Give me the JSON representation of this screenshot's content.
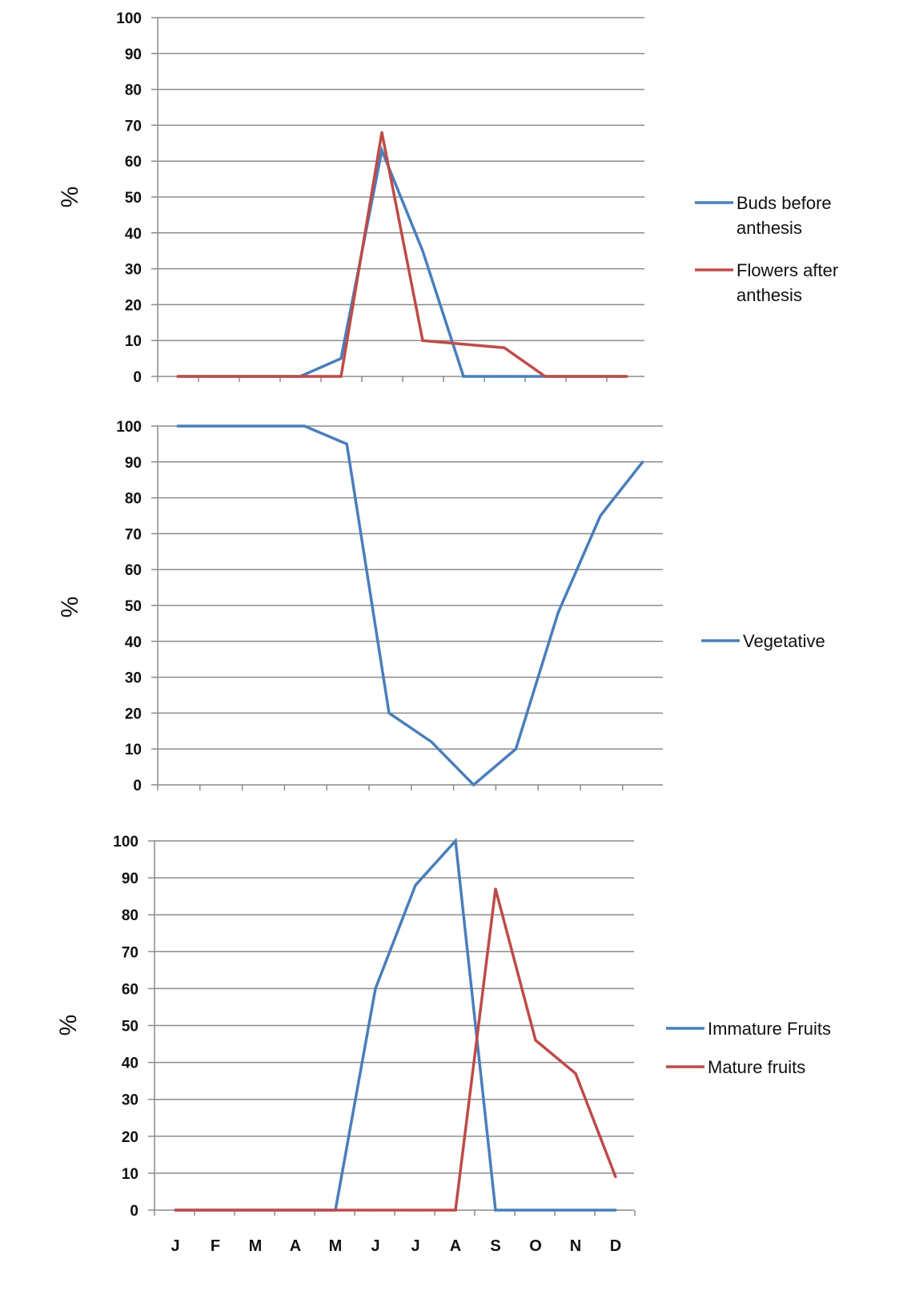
{
  "chart_data": [
    {
      "type": "line",
      "ylabel": "%",
      "ylim": [
        0,
        100
      ],
      "yticks": [
        "0",
        "10",
        "20",
        "30",
        "40",
        "50",
        "60",
        "70",
        "80",
        "90",
        "100"
      ],
      "grid": true,
      "legend": "right",
      "categories": [
        "J",
        "F",
        "M",
        "A",
        "M",
        "J",
        "J",
        "A",
        "S",
        "O",
        "N",
        "D"
      ],
      "series": [
        {
          "name_lines": [
            "Buds before",
            "anthesis"
          ],
          "color": "#4a7ebb",
          "values": [
            0,
            0,
            0,
            0,
            5,
            63,
            35,
            0,
            0,
            0,
            0,
            0
          ]
        },
        {
          "name_lines": [
            "Flowers after",
            "anthesis"
          ],
          "color": "#be4b48",
          "values": [
            0,
            0,
            0,
            0,
            0,
            68,
            10,
            9,
            8,
            0,
            0,
            0
          ]
        }
      ]
    },
    {
      "type": "line",
      "ylabel": "%",
      "ylim": [
        0,
        100
      ],
      "yticks": [
        "0",
        "10",
        "20",
        "30",
        "40",
        "50",
        "60",
        "70",
        "80",
        "90",
        "100"
      ],
      "grid": true,
      "legend": "right",
      "categories": [
        "J",
        "F",
        "M",
        "A",
        "M",
        "J",
        "J",
        "A",
        "S",
        "O",
        "N",
        "D"
      ],
      "series": [
        {
          "name_lines": [
            "Vegetative"
          ],
          "color": "#4a7ebb",
          "values": [
            100,
            100,
            100,
            100,
            95,
            20,
            12,
            0,
            10,
            48,
            75,
            90
          ]
        }
      ]
    },
    {
      "type": "line",
      "ylabel": "%",
      "ylim": [
        0,
        100
      ],
      "yticks": [
        "0",
        "10",
        "20",
        "30",
        "40",
        "50",
        "60",
        "70",
        "80",
        "90",
        "100"
      ],
      "grid": true,
      "legend": "right",
      "categories": [
        "J",
        "F",
        "M",
        "A",
        "M",
        "J",
        "J",
        "A",
        "S",
        "O",
        "N",
        "D"
      ],
      "xticklabels": [
        "J",
        "F",
        "M",
        "A",
        "M",
        "J",
        "J",
        "A",
        "S",
        "O",
        "N",
        "D"
      ],
      "series": [
        {
          "name_lines": [
            "Immature Fruits"
          ],
          "color": "#4a7ebb",
          "values": [
            0,
            0,
            0,
            0,
            0,
            60,
            88,
            100,
            0,
            0,
            0,
            0
          ]
        },
        {
          "name_lines": [
            "Mature fruits"
          ],
          "color": "#be4b48",
          "values": [
            0,
            0,
            0,
            0,
            0,
            0,
            0,
            0,
            87,
            46,
            37,
            9
          ]
        }
      ]
    }
  ]
}
